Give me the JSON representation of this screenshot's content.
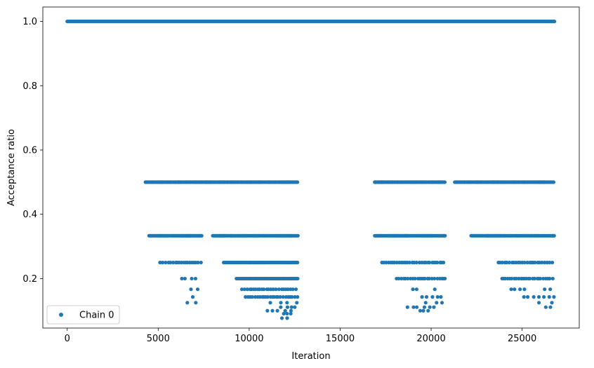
{
  "chart_data": {
    "type": "scatter",
    "xlabel": "Iteration",
    "ylabel": "Acceptance ratio",
    "xlim": [
      -1340,
      28140
    ],
    "ylim": [
      0.0461,
      1.0448
    ],
    "xticks": [
      0,
      5000,
      10000,
      15000,
      20000,
      25000
    ],
    "xtick_labels": [
      "0",
      "5000",
      "10000",
      "15000",
      "20000",
      "25000"
    ],
    "yticks": [
      0.2,
      0.4,
      0.6,
      0.8,
      1.0
    ],
    "ytick_labels": [
      "0.2",
      "0.4",
      "0.6",
      "0.8",
      "1.0"
    ],
    "grid": false,
    "legend_placement": "lower-left",
    "colors": {
      "series": "#1f77b4",
      "axes": "#000000",
      "legend_border": "#cccccc"
    },
    "series": [
      {
        "name": "Chain 0",
        "marker": "circle",
        "segments": [
          {
            "y": 1.0,
            "x_start": 0,
            "x_end": 26800,
            "density": "continuous"
          },
          {
            "y": 0.5,
            "x_start": 4300,
            "x_end": 12700,
            "density": "dense"
          },
          {
            "y": 0.5,
            "x_start": 16900,
            "x_end": 20800,
            "density": "dense"
          },
          {
            "y": 0.5,
            "x_start": 21300,
            "x_end": 26800,
            "density": "dense"
          },
          {
            "y": 0.3333,
            "x_start": 4500,
            "x_end": 7400,
            "density": "dense"
          },
          {
            "y": 0.3333,
            "x_start": 8000,
            "x_end": 12700,
            "density": "dense"
          },
          {
            "y": 0.3333,
            "x_start": 16900,
            "x_end": 20800,
            "density": "dense"
          },
          {
            "y": 0.3333,
            "x_start": 22200,
            "x_end": 26800,
            "density": "dense"
          },
          {
            "y": 0.25,
            "x_start": 5100,
            "x_end": 7400,
            "density": "medium"
          },
          {
            "y": 0.25,
            "x_start": 8600,
            "x_end": 12700,
            "density": "dense"
          },
          {
            "y": 0.25,
            "x_start": 17300,
            "x_end": 20800,
            "density": "medium"
          },
          {
            "y": 0.25,
            "x_start": 23700,
            "x_end": 26800,
            "density": "medium"
          },
          {
            "y": 0.2,
            "x_start": 6300,
            "x_end": 7400,
            "density": "sparse"
          },
          {
            "y": 0.2,
            "x_start": 9300,
            "x_end": 12700,
            "density": "dense"
          },
          {
            "y": 0.2,
            "x_start": 18100,
            "x_end": 20800,
            "density": "medium"
          },
          {
            "y": 0.2,
            "x_start": 23900,
            "x_end": 26800,
            "density": "medium"
          },
          {
            "y": 0.1667,
            "x_start": 6800,
            "x_end": 7400,
            "density": "sparse"
          },
          {
            "y": 0.1667,
            "x_start": 9600,
            "x_end": 12700,
            "density": "medium"
          },
          {
            "y": 0.1667,
            "x_start": 19000,
            "x_end": 20800,
            "density": "sparse"
          },
          {
            "y": 0.1667,
            "x_start": 24400,
            "x_end": 26800,
            "density": "sparse"
          },
          {
            "y": 0.1429,
            "x_start": 6900,
            "x_end": 7400,
            "density": "sparse"
          },
          {
            "y": 0.1429,
            "x_start": 9800,
            "x_end": 12700,
            "density": "medium"
          },
          {
            "y": 0.1429,
            "x_start": 19500,
            "x_end": 20800,
            "density": "sparse"
          },
          {
            "y": 0.1429,
            "x_start": 25100,
            "x_end": 26800,
            "density": "sparse"
          },
          {
            "y": 0.125,
            "x_start": 6600,
            "x_end": 7300,
            "density": "sparse"
          },
          {
            "y": 0.125,
            "x_start": 11000,
            "x_end": 12700,
            "density": "sparse"
          },
          {
            "y": 0.125,
            "x_start": 19700,
            "x_end": 20600,
            "density": "sparse"
          },
          {
            "y": 0.125,
            "x_start": 25400,
            "x_end": 26800,
            "density": "sparse"
          },
          {
            "y": 0.1111,
            "x_start": 7200,
            "x_end": 7300,
            "density": "sparse"
          },
          {
            "y": 0.1111,
            "x_start": 11300,
            "x_end": 12600,
            "density": "sparse"
          },
          {
            "y": 0.1111,
            "x_start": 18700,
            "x_end": 20300,
            "density": "sparse"
          },
          {
            "y": 0.1111,
            "x_start": 26300,
            "x_end": 26800,
            "density": "sparse"
          },
          {
            "y": 0.1,
            "x_start": 11000,
            "x_end": 12600,
            "density": "sparse"
          },
          {
            "y": 0.1,
            "x_start": 19400,
            "x_end": 20100,
            "density": "sparse"
          },
          {
            "y": 0.0909,
            "x_start": 11900,
            "x_end": 12500,
            "density": "sparse"
          },
          {
            "y": 0.0769,
            "x_start": 11800,
            "x_end": 12100,
            "density": "sparse"
          }
        ]
      }
    ]
  }
}
